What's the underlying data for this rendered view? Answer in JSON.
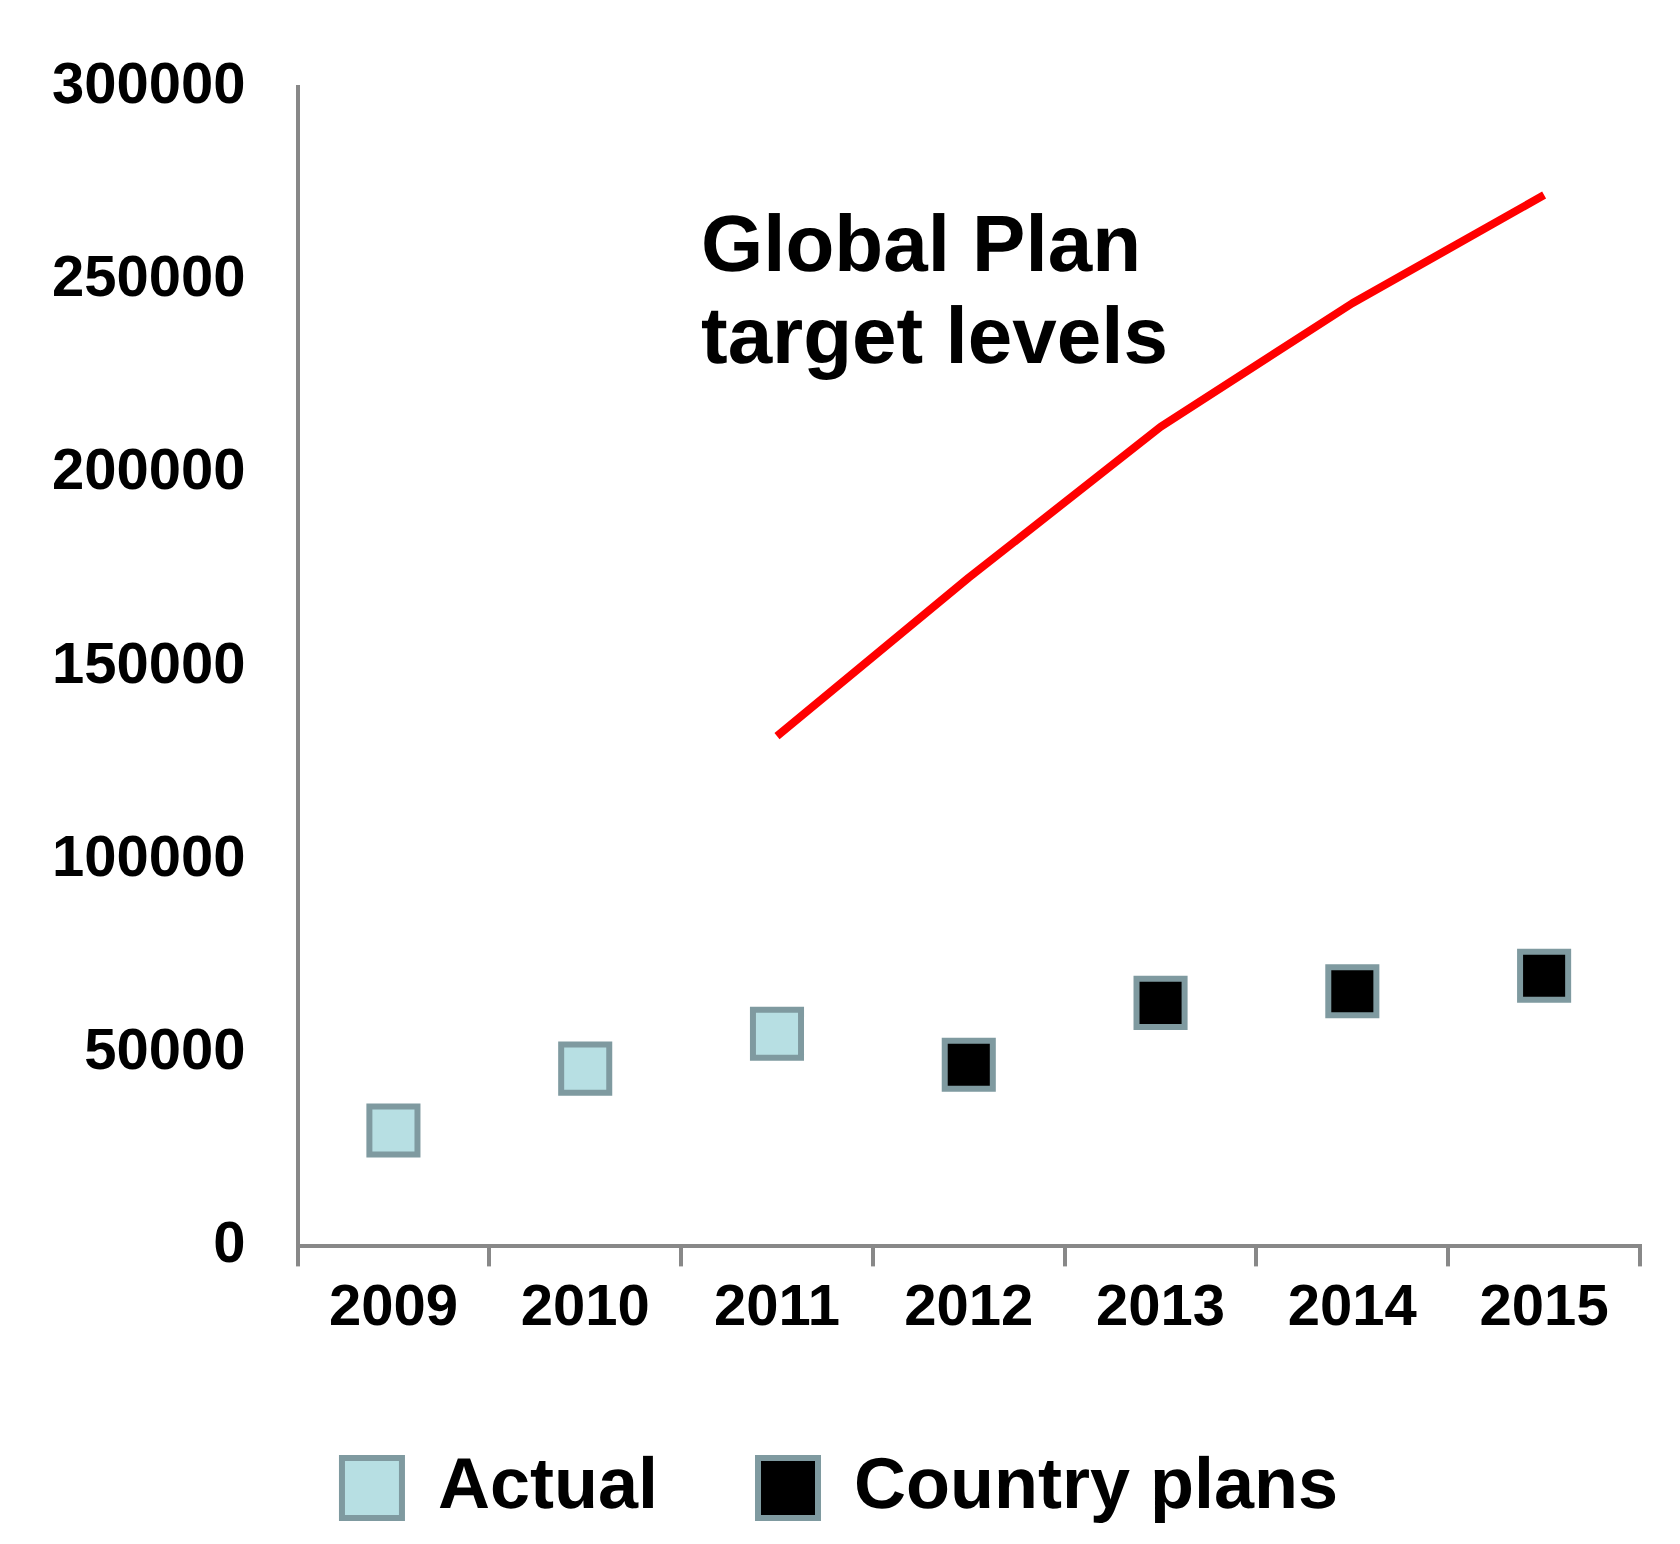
{
  "chart_data": {
    "type": "scatter",
    "categories": [
      "2009",
      "2010",
      "2011",
      "2012",
      "2013",
      "2014",
      "2015"
    ],
    "series": [
      {
        "name": "Actual",
        "color": "#b7dfe3",
        "marker": "square",
        "values": [
          30000,
          46000,
          55000,
          null,
          null,
          null,
          null
        ]
      },
      {
        "name": "Country plans",
        "color": "#000000",
        "marker": "square",
        "values": [
          null,
          null,
          null,
          47000,
          63000,
          66000,
          70000
        ]
      },
      {
        "name": "Global Plan target levels",
        "type": "line",
        "color": "#ff0000",
        "marker": "none",
        "values": [
          null,
          null,
          132000,
          173000,
          212000,
          244000,
          272000
        ]
      }
    ],
    "ylim": [
      0,
      300000
    ],
    "yticks": [
      0,
      50000,
      100000,
      150000,
      200000,
      250000,
      300000
    ],
    "grid": false,
    "legend": "bottom"
  }
}
